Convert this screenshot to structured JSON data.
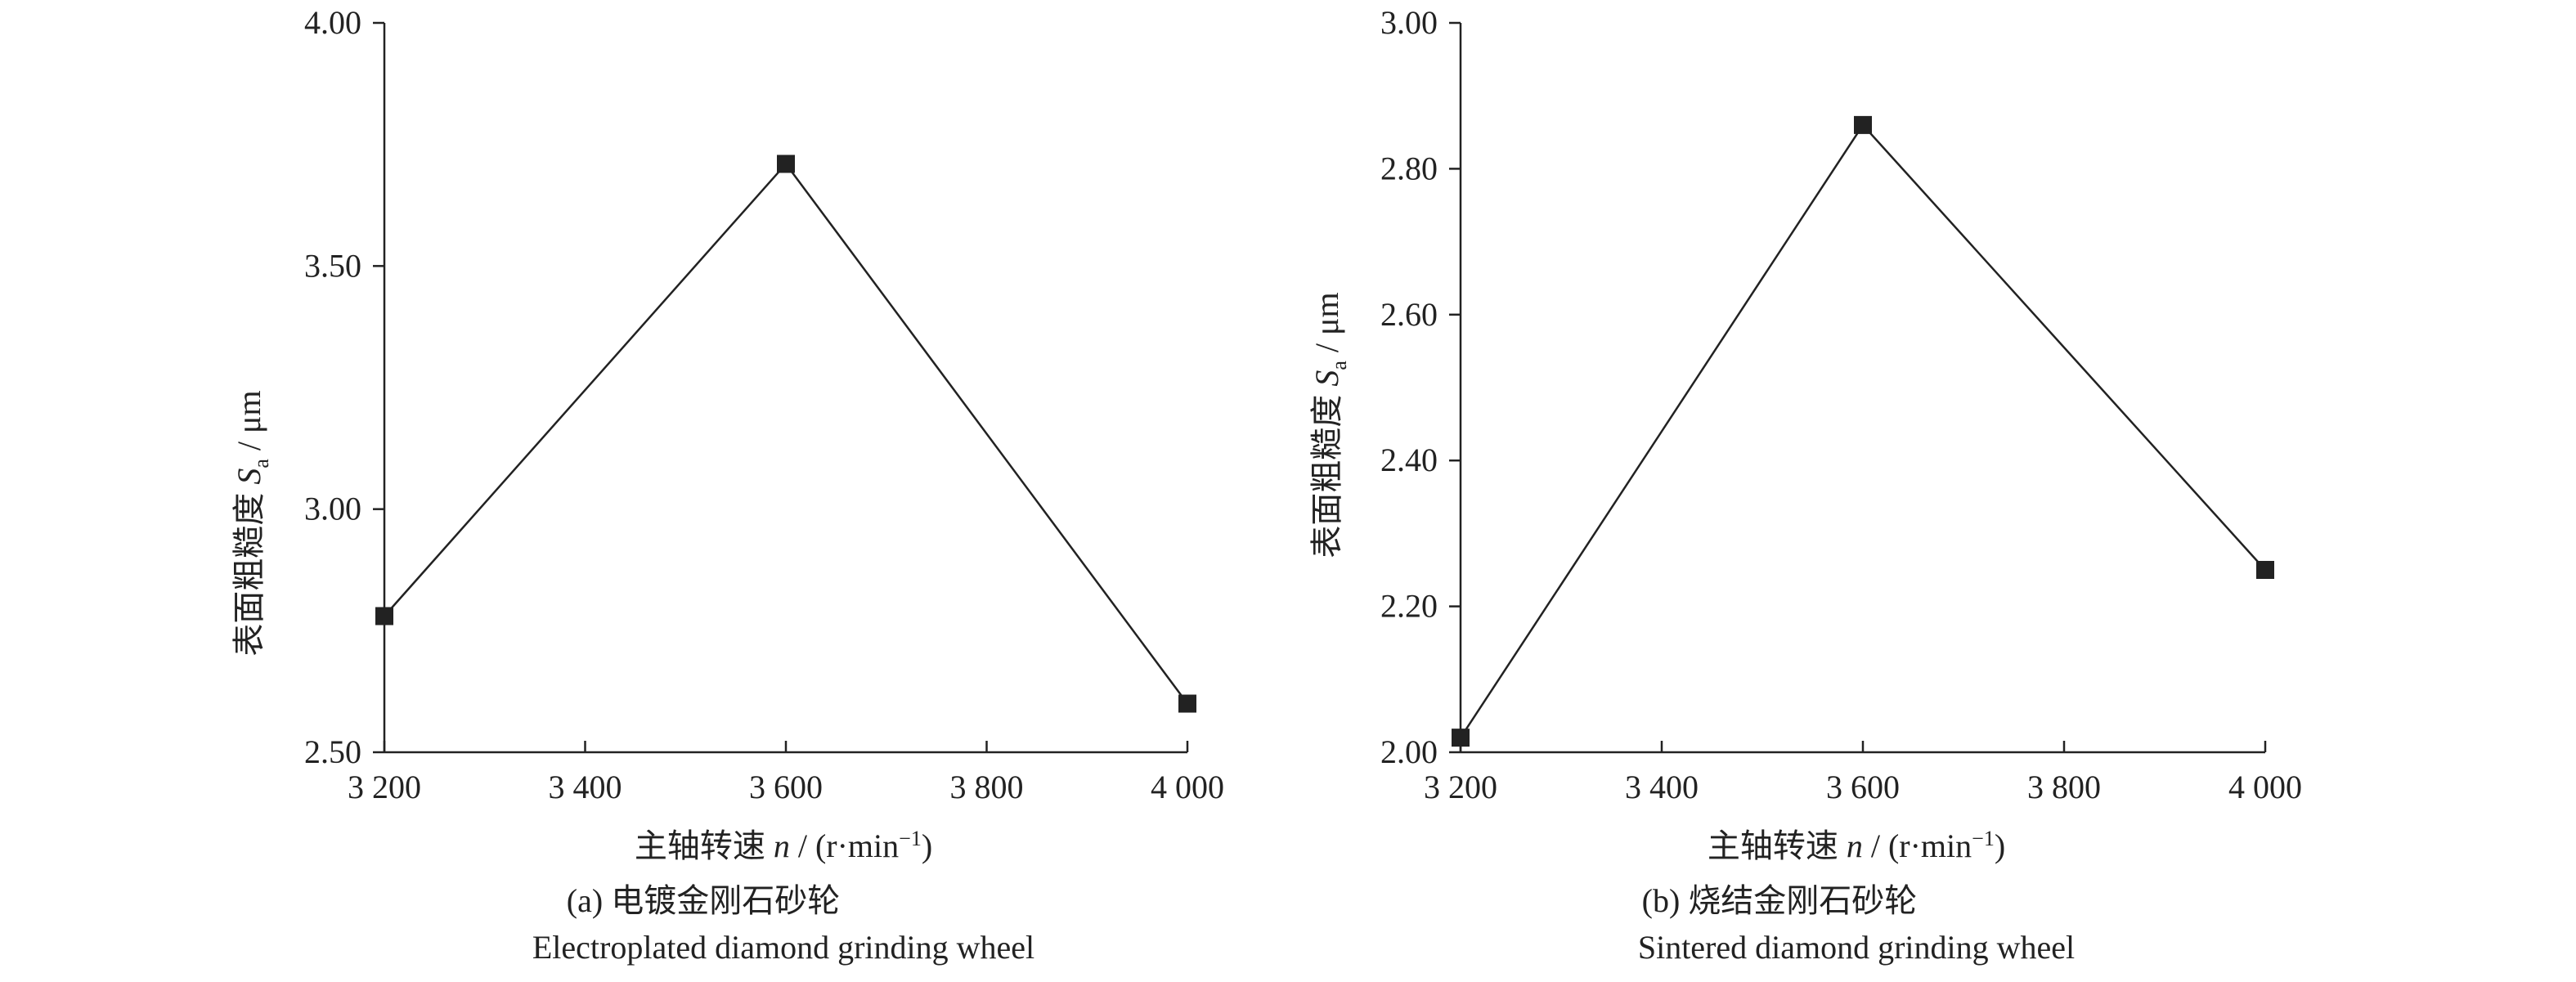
{
  "chart_data": [
    {
      "type": "line",
      "x": [
        3200,
        3600,
        4000
      ],
      "y": [
        2.78,
        3.71,
        2.6
      ],
      "xlim": [
        3200,
        4000
      ],
      "ylim": [
        2.5,
        4.0
      ],
      "xticks": [
        "3 200",
        "3 400",
        "3 600",
        "3 800",
        "4 000"
      ],
      "yticks": [
        "2.50",
        "3.00",
        "3.50",
        "4.00"
      ],
      "ylabel": {
        "cn": "表面粗糙度",
        "sym": "S",
        "sub": "a",
        "unit": " / μm"
      },
      "xlabel": {
        "cn": "主轴转速",
        "sym": "n",
        "unit": " / (r·min",
        "sup": "−1",
        "close": ")"
      },
      "caption_cn": "(a) 电镀金刚石砂轮",
      "caption_en": "Electroplated diamond grinding wheel",
      "marker": "square",
      "grid": false,
      "line_color": "#222222"
    },
    {
      "type": "line",
      "x": [
        3200,
        3600,
        4000
      ],
      "y": [
        2.02,
        2.86,
        2.25
      ],
      "xlim": [
        3200,
        4000
      ],
      "ylim": [
        2.0,
        3.0
      ],
      "xticks": [
        "3 200",
        "3 400",
        "3 600",
        "3 800",
        "4 000"
      ],
      "yticks": [
        "2.00",
        "2.20",
        "2.40",
        "2.60",
        "2.80",
        "3.00"
      ],
      "ylabel": {
        "cn": "表面粗糙度",
        "sym": "S",
        "sub": "a",
        "unit": " / μm"
      },
      "xlabel": {
        "cn": "主轴转速",
        "sym": "n",
        "unit": " / (r·min",
        "sup": "−1",
        "close": ")"
      },
      "caption_cn": "(b) 烧结金刚石砂轮",
      "caption_en": "Sintered diamond grinding wheel",
      "marker": "square",
      "grid": false,
      "line_color": "#222222"
    }
  ]
}
